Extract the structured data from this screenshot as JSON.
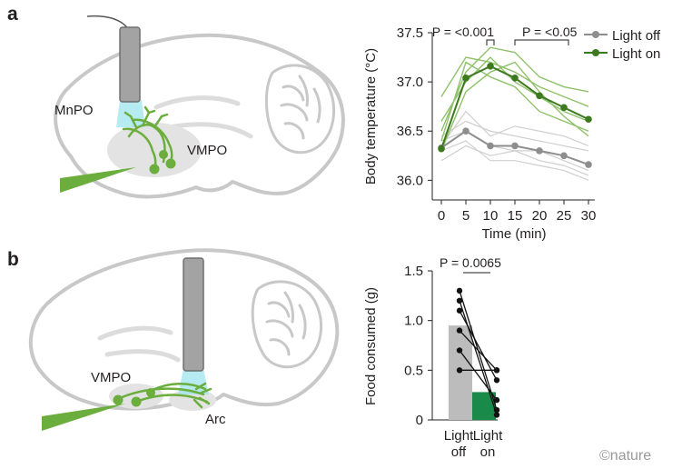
{
  "panels": {
    "a": "a",
    "b": "b"
  },
  "brain_a": {
    "regions": {
      "mnpo": "MnPO",
      "vmpo": "VMPO"
    }
  },
  "brain_b": {
    "regions": {
      "vmpo": "VMPO",
      "arc": "Arc"
    }
  },
  "colors": {
    "green_dark": "#3d7a1f",
    "green_light": "#8fc16a",
    "grey_dark": "#8e8e8e",
    "grey_light": "#cfcfcf",
    "bar_grey": "#bcbcbc",
    "bar_green": "#1a8a4a",
    "glow": "#9fe4ee"
  },
  "chart_data": [
    {
      "type": "line",
      "x": [
        0,
        5,
        10,
        15,
        20,
        25,
        30
      ],
      "xlabel": "Time (min)",
      "ylabel": "Body temperature (°C)",
      "xlim": [
        0,
        30
      ],
      "ylim": [
        35.8,
        37.5
      ],
      "yticks": [
        "36.0",
        "36.5",
        "37.0",
        "37.5"
      ],
      "xticks": [
        "0",
        "5",
        "10",
        "15",
        "20",
        "25",
        "30"
      ],
      "series": [
        {
          "name": "Light off",
          "values": [
            36.33,
            36.5,
            36.35,
            36.35,
            36.3,
            36.25,
            36.16
          ]
        },
        {
          "name": "Light on",
          "values": [
            36.32,
            37.04,
            37.16,
            37.04,
            36.86,
            36.74,
            36.62
          ]
        }
      ],
      "individual_off": [
        [
          36.45,
          36.6,
          36.5,
          36.45,
          36.4,
          36.35,
          36.3
        ],
        [
          36.2,
          36.35,
          36.25,
          36.3,
          36.2,
          36.15,
          36.05
        ],
        [
          36.35,
          36.7,
          36.45,
          36.55,
          36.5,
          36.45,
          36.35
        ],
        [
          36.3,
          36.4,
          36.2,
          36.2,
          36.15,
          36.1,
          36.0
        ],
        [
          36.4,
          36.5,
          36.35,
          36.3,
          36.3,
          36.2,
          36.1
        ]
      ],
      "individual_on": [
        [
          36.85,
          37.25,
          37.2,
          37.1,
          36.95,
          36.85,
          36.75
        ],
        [
          36.5,
          37.1,
          37.35,
          37.3,
          37.05,
          36.95,
          36.9
        ],
        [
          36.4,
          37.2,
          37.05,
          36.95,
          36.7,
          36.6,
          36.5
        ],
        [
          36.6,
          37.0,
          37.25,
          37.0,
          36.85,
          36.7,
          36.6
        ],
        [
          36.3,
          36.9,
          37.1,
          37.2,
          36.9,
          36.65,
          36.45
        ]
      ],
      "annotations": [
        {
          "text": "P = <0.001",
          "from": 10,
          "to": 10
        },
        {
          "text": "P = <0.05",
          "from": 15,
          "to": 30
        }
      ]
    },
    {
      "type": "bar",
      "categories": [
        "Light off",
        "Light on"
      ],
      "category_lines": [
        [
          "Light",
          "off"
        ],
        [
          "Light",
          "on"
        ]
      ],
      "values": [
        0.95,
        0.28
      ],
      "ylabel": "Food consumed (g)",
      "ylim": [
        0,
        1.5
      ],
      "yticks": [
        "0",
        "0.5",
        "1.0",
        "1.5"
      ],
      "paired": [
        [
          1.3,
          0.1
        ],
        [
          1.2,
          0.05
        ],
        [
          1.1,
          0.4
        ],
        [
          0.9,
          0.5
        ],
        [
          0.7,
          0.2
        ],
        [
          0.5,
          0.5
        ]
      ],
      "annotation": "P = 0.0065"
    }
  ],
  "brand": {
    "text": "©nature"
  }
}
